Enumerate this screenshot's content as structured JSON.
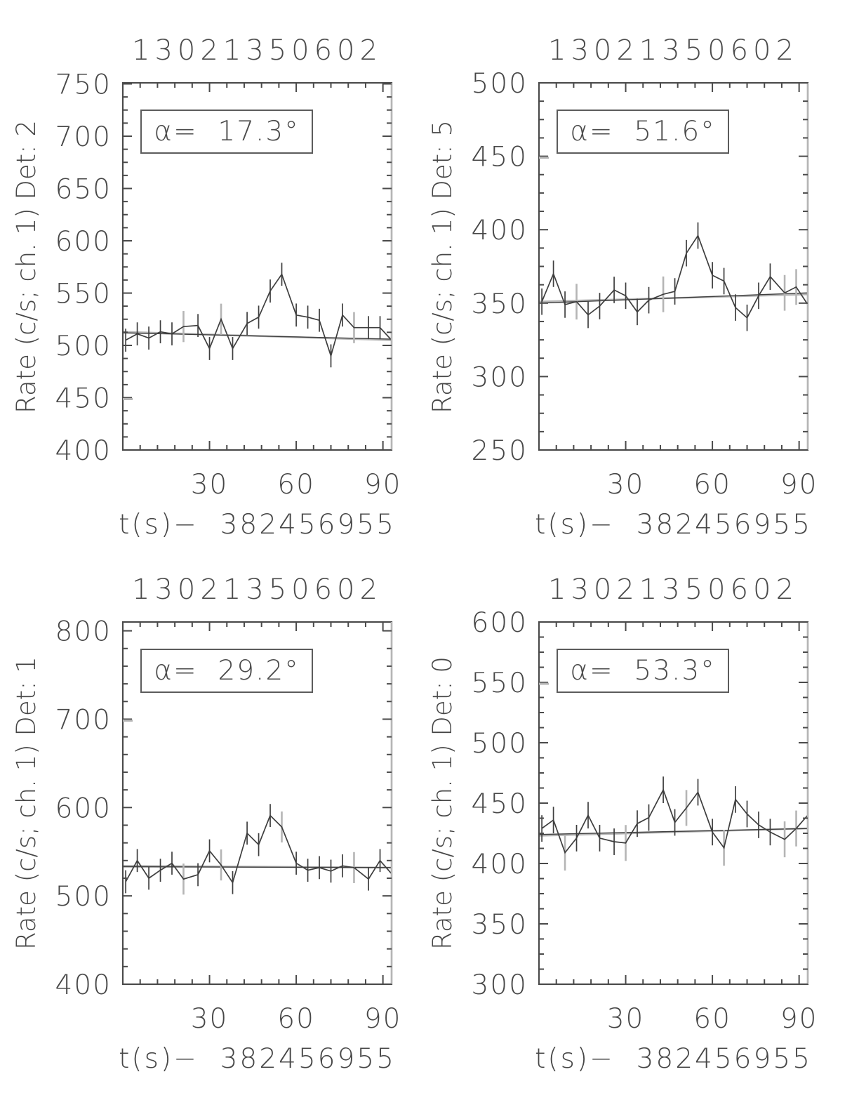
{
  "colors": {
    "ink": "#3e3e3e",
    "gray": "#b5b5b5",
    "frame": "#4a4a4a"
  },
  "chart_data": [
    {
      "type": "line",
      "title": "13021350602",
      "ylabel": "Rate (c/s; ch. 1) Det: 2",
      "xlabel": "t(s)−  382456955",
      "alpha_text": "α=  17.3°",
      "xlim": [
        0,
        93
      ],
      "ylim": [
        400,
        751
      ],
      "xticks": [
        30,
        60,
        90
      ],
      "yticks": [
        400,
        450,
        500,
        550,
        600,
        650,
        700,
        750
      ],
      "x_minor": 6,
      "y_minor": 12.5,
      "x": [
        1,
        5,
        9,
        13,
        17,
        21,
        26,
        30,
        34,
        38,
        43,
        47,
        51,
        55,
        60,
        64,
        68,
        72,
        76,
        80,
        85,
        89,
        93
      ],
      "rate": [
        505,
        511,
        507,
        513,
        511,
        518,
        519,
        497,
        525,
        497,
        521,
        527,
        552,
        568,
        529,
        527,
        524,
        490,
        529,
        517,
        517,
        517,
        505
      ],
      "err": 11,
      "gray_err_idx": [
        5,
        8,
        19
      ],
      "gray_yticks": [
        450
      ],
      "trend": [
        512,
        506
      ],
      "trend_gray": [
        513,
        505
      ]
    },
    {
      "type": "line",
      "title": "13021350602",
      "ylabel": "Rate (c/s; ch. 1) Det: 5",
      "xlabel": "t(s)−  382456955",
      "alpha_text": "α=  51.6°",
      "xlim": [
        0,
        93
      ],
      "ylim": [
        250,
        500
      ],
      "xticks": [
        30,
        60,
        90
      ],
      "yticks": [
        250,
        300,
        350,
        400,
        450,
        500
      ],
      "x_minor": 6,
      "y_minor": 12.5,
      "x": [
        1,
        5,
        9,
        13,
        17,
        21,
        26,
        30,
        34,
        38,
        43,
        47,
        51,
        55,
        60,
        64,
        68,
        72,
        76,
        80,
        85,
        89,
        93
      ],
      "rate": [
        351,
        370,
        349,
        351,
        342,
        348,
        359,
        355,
        344,
        352,
        356,
        358,
        384,
        396,
        369,
        365,
        347,
        340,
        355,
        368,
        357,
        361,
        349
      ],
      "err": 9,
      "gray_err_idx": [
        3,
        10,
        20,
        21
      ],
      "gray_yticks": [
        450
      ],
      "trend": [
        350,
        357
      ],
      "trend_gray": [
        351,
        356
      ]
    },
    {
      "type": "line",
      "title": "13021350602",
      "ylabel": "Rate (c/s; ch. 1) Det: 1",
      "xlabel": "t(s)−  382456955",
      "alpha_text": "α=  29.2°",
      "xlim": [
        0,
        93
      ],
      "ylim": [
        400,
        810
      ],
      "xticks": [
        30,
        60,
        90
      ],
      "yticks": [
        400,
        500,
        600,
        700,
        800
      ],
      "x_minor": 6,
      "y_minor": 20,
      "x": [
        1,
        5,
        9,
        13,
        17,
        21,
        26,
        30,
        34,
        38,
        43,
        47,
        51,
        55,
        60,
        64,
        68,
        72,
        76,
        80,
        85,
        89,
        93
      ],
      "rate": [
        516,
        540,
        520,
        529,
        537,
        519,
        524,
        551,
        535,
        515,
        571,
        558,
        591,
        578,
        537,
        529,
        532,
        528,
        534,
        532,
        519,
        540,
        525
      ],
      "err": 13,
      "gray_err_idx": [
        5,
        8,
        13,
        19
      ],
      "gray_yticks": [
        700
      ],
      "trend": [
        533,
        532
      ],
      "trend_gray": [
        534,
        532
      ]
    },
    {
      "type": "line",
      "title": "13021350602",
      "ylabel": "Rate (c/s; ch. 1) Det: 0",
      "xlabel": "t(s)−  382456955",
      "alpha_text": "α=  53.3°",
      "xlim": [
        0,
        93
      ],
      "ylim": [
        300,
        600
      ],
      "xticks": [
        30,
        60,
        90
      ],
      "yticks": [
        300,
        350,
        400,
        450,
        500,
        550,
        600
      ],
      "x_minor": 6,
      "y_minor": 12.5,
      "x": [
        1,
        5,
        9,
        13,
        17,
        21,
        26,
        30,
        34,
        38,
        43,
        47,
        51,
        55,
        60,
        64,
        68,
        72,
        76,
        80,
        85,
        89,
        93
      ],
      "rate": [
        429,
        436,
        409,
        421,
        440,
        421,
        418,
        417,
        433,
        438,
        461,
        434,
        446,
        459,
        426,
        413,
        453,
        441,
        432,
        426,
        420,
        429,
        440
      ],
      "err": 11,
      "gray_err_idx": [
        2,
        7,
        12,
        15,
        20,
        21
      ],
      "gray_yticks": [
        550
      ],
      "trend": [
        424,
        429
      ],
      "trend_gray": [
        423,
        429
      ]
    }
  ]
}
